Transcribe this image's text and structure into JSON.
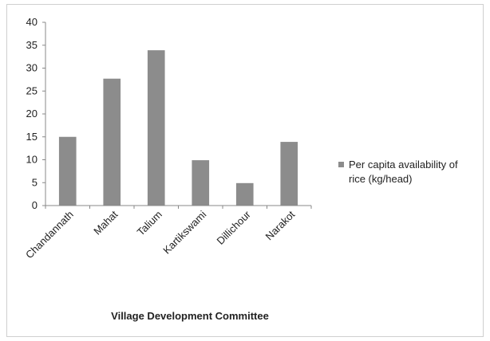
{
  "chart_data": {
    "type": "bar",
    "title": "",
    "xlabel": "Village Development Committee",
    "ylabel": "",
    "categories": [
      "Chandannath",
      "Mahat",
      "Talium",
      "Kartikswami",
      "Dillichour",
      "Narakot"
    ],
    "series": [
      {
        "name": "Per capita availability of rice (kg/head)",
        "values": [
          15,
          27.7,
          33.9,
          9.9,
          4.9,
          13.9
        ],
        "color": "#8c8c8c"
      }
    ],
    "ylim": [
      0,
      40
    ],
    "yticks": [
      0,
      5,
      10,
      15,
      20,
      25,
      30,
      35,
      40
    ],
    "grid": false,
    "legend_position": "right",
    "legend_lines": [
      "Per capita availability of",
      "rice (kg/head)"
    ]
  }
}
